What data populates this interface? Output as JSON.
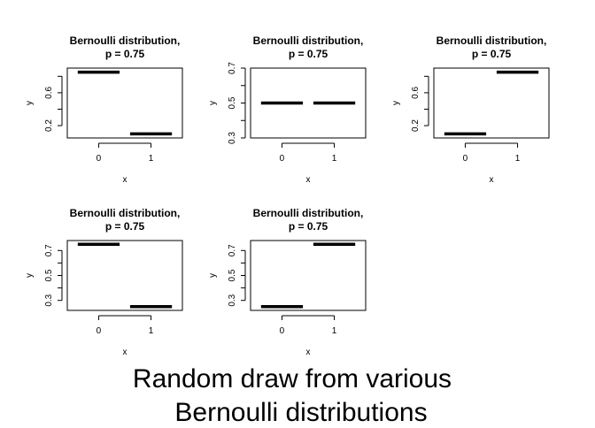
{
  "figure": {
    "caption_line1": "Random draw from various",
    "caption_line2": "Bernoulli distributions"
  },
  "chart_data": [
    {
      "type": "line",
      "title": "Bernoulli distribution,\np = 0.75",
      "xlabel": "x",
      "ylabel": "y",
      "categories": [
        "0",
        "1"
      ],
      "values": [
        0.85,
        0.1
      ],
      "xlim": [
        -0.6,
        1.6
      ],
      "ylim": [
        0.05,
        0.9
      ],
      "yticks": [
        0.2,
        0.6
      ],
      "ytick_labels": [
        "0.2",
        "0.6"
      ],
      "minor_yticks": [
        0.4,
        0.8
      ],
      "xticks": [
        0,
        1
      ],
      "xtick_labels": [
        "0",
        "1"
      ],
      "color": "#000000"
    },
    {
      "type": "line",
      "title": "Bernoulli distribution,\np = 0.75",
      "xlabel": "x",
      "ylabel": "y",
      "categories": [
        "0",
        "1"
      ],
      "values": [
        0.5,
        0.5
      ],
      "xlim": [
        -0.6,
        1.6
      ],
      "ylim": [
        0.3,
        0.7
      ],
      "yticks": [
        0.3,
        0.5,
        0.7
      ],
      "ytick_labels": [
        "0.3",
        "0.5",
        "0.7"
      ],
      "minor_yticks": [
        0.4,
        0.6
      ],
      "xticks": [
        0,
        1
      ],
      "xtick_labels": [
        "0",
        "1"
      ],
      "color": "#000000"
    },
    {
      "type": "line",
      "title": "Bernoulli distribution,\np = 0.75",
      "xlabel": "x",
      "ylabel": "y",
      "categories": [
        "0",
        "1"
      ],
      "values": [
        0.1,
        0.85
      ],
      "xlim": [
        -0.6,
        1.6
      ],
      "ylim": [
        0.05,
        0.9
      ],
      "yticks": [
        0.2,
        0.6
      ],
      "ytick_labels": [
        "0.2",
        "0.6"
      ],
      "minor_yticks": [
        0.4,
        0.8
      ],
      "xticks": [
        0,
        1
      ],
      "xtick_labels": [
        "0",
        "1"
      ],
      "color": "#000000"
    },
    {
      "type": "line",
      "title": "Bernoulli distribution,\np = 0.75",
      "xlabel": "x",
      "ylabel": "y",
      "categories": [
        "0",
        "1"
      ],
      "values": [
        0.75,
        0.25
      ],
      "xlim": [
        -0.6,
        1.6
      ],
      "ylim": [
        0.22,
        0.78
      ],
      "yticks": [
        0.3,
        0.5,
        0.7
      ],
      "ytick_labels": [
        "0.3",
        "0.5",
        "0.7"
      ],
      "minor_yticks": [
        0.4,
        0.6
      ],
      "xticks": [
        0,
        1
      ],
      "xtick_labels": [
        "0",
        "1"
      ],
      "color": "#000000"
    },
    {
      "type": "line",
      "title": "Bernoulli distribution,\np = 0.75",
      "xlabel": "x",
      "ylabel": "y",
      "categories": [
        "0",
        "1"
      ],
      "values": [
        0.25,
        0.75
      ],
      "xlim": [
        -0.6,
        1.6
      ],
      "ylim": [
        0.22,
        0.78
      ],
      "yticks": [
        0.3,
        0.5,
        0.7
      ],
      "ytick_labels": [
        "0.3",
        "0.5",
        "0.7"
      ],
      "minor_yticks": [
        0.4,
        0.6
      ],
      "xticks": [
        0,
        1
      ],
      "xtick_labels": [
        "0",
        "1"
      ],
      "color": "#000000"
    }
  ]
}
